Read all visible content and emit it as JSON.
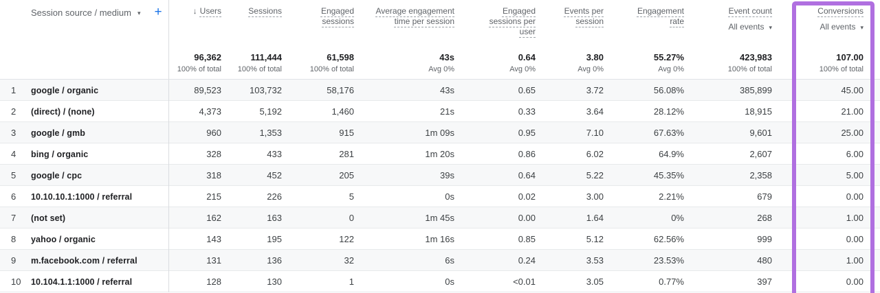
{
  "icons": {
    "sort_desc": "↓",
    "caret": "▾",
    "add": "+"
  },
  "accent_colors": {
    "highlight_purple": "#b06fe0",
    "add_button_blue": "#1a73e8"
  },
  "header": {
    "dimension": {
      "label": "Session source / medium"
    }
  },
  "columns": [
    {
      "id": "users",
      "label": "Users",
      "sorted": "descending",
      "total": "96,362",
      "total_sub": "100% of total"
    },
    {
      "id": "sessions",
      "label": "Sessions",
      "total": "111,444",
      "total_sub": "100% of total"
    },
    {
      "id": "engaged_sessions",
      "label": "Engaged sessions",
      "total": "61,598",
      "total_sub": "100% of total"
    },
    {
      "id": "avg_engagement_time_per_session",
      "label": "Average engagement time per session",
      "total": "43s",
      "total_sub": "Avg 0%"
    },
    {
      "id": "engaged_sessions_per_user",
      "label": "Engaged sessions per user",
      "total": "0.64",
      "total_sub": "Avg 0%"
    },
    {
      "id": "events_per_session",
      "label": "Events per session",
      "total": "3.80",
      "total_sub": "Avg 0%"
    },
    {
      "id": "engagement_rate",
      "label": "Engagement rate",
      "total": "55.27%",
      "total_sub": "Avg 0%"
    },
    {
      "id": "event_count",
      "label": "Event count",
      "filter": "All events",
      "total": "423,983",
      "total_sub": "100% of total"
    },
    {
      "id": "conversions",
      "label": "Conversions",
      "filter": "All events",
      "total": "107.00",
      "total_sub": "100% of total",
      "highlighted": true
    }
  ],
  "rows": [
    {
      "n": "1",
      "source": "google / organic",
      "values": [
        "89,523",
        "103,732",
        "58,176",
        "43s",
        "0.65",
        "3.72",
        "56.08%",
        "385,899",
        "45.00"
      ]
    },
    {
      "n": "2",
      "source": "(direct) / (none)",
      "values": [
        "4,373",
        "5,192",
        "1,460",
        "21s",
        "0.33",
        "3.64",
        "28.12%",
        "18,915",
        "21.00"
      ]
    },
    {
      "n": "3",
      "source": "google / gmb",
      "values": [
        "960",
        "1,353",
        "915",
        "1m 09s",
        "0.95",
        "7.10",
        "67.63%",
        "9,601",
        "25.00"
      ]
    },
    {
      "n": "4",
      "source": "bing / organic",
      "values": [
        "328",
        "433",
        "281",
        "1m 20s",
        "0.86",
        "6.02",
        "64.9%",
        "2,607",
        "6.00"
      ]
    },
    {
      "n": "5",
      "source": "google / cpc",
      "values": [
        "318",
        "452",
        "205",
        "39s",
        "0.64",
        "5.22",
        "45.35%",
        "2,358",
        "5.00"
      ]
    },
    {
      "n": "6",
      "source": "10.10.10.1:1000 / referral",
      "values": [
        "215",
        "226",
        "5",
        "0s",
        "0.02",
        "3.00",
        "2.21%",
        "679",
        "0.00"
      ]
    },
    {
      "n": "7",
      "source": "(not set)",
      "values": [
        "162",
        "163",
        "0",
        "1m 45s",
        "0.00",
        "1.64",
        "0%",
        "268",
        "1.00"
      ]
    },
    {
      "n": "8",
      "source": "yahoo / organic",
      "values": [
        "143",
        "195",
        "122",
        "1m 16s",
        "0.85",
        "5.12",
        "62.56%",
        "999",
        "0.00"
      ]
    },
    {
      "n": "9",
      "source": "m.facebook.com / referral",
      "values": [
        "131",
        "136",
        "32",
        "6s",
        "0.24",
        "3.53",
        "23.53%",
        "480",
        "1.00"
      ]
    },
    {
      "n": "10",
      "source": "10.104.1.1:1000 / referral",
      "values": [
        "128",
        "130",
        "1",
        "0s",
        "<0.01",
        "3.05",
        "0.77%",
        "397",
        "0.00"
      ]
    }
  ]
}
